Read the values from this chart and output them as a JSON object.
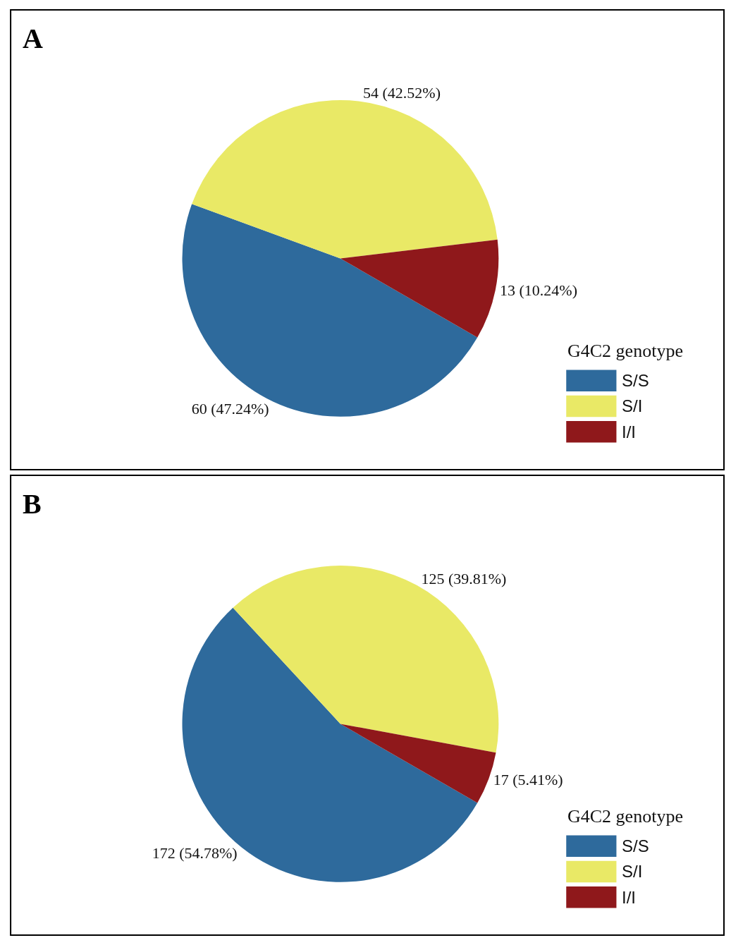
{
  "chart_data": [
    {
      "type": "pie",
      "title": "A",
      "categories": [
        "S/S",
        "S/I",
        "I/I"
      ],
      "values": [
        60,
        54,
        13
      ],
      "colors": [
        "#2e6a9c",
        "#e9e966",
        "#8f181b"
      ],
      "value_labels": [
        "60 (47.24%)",
        "54 (42.52%)",
        "13 (10.24%)"
      ],
      "legend_title": "G4C2 genotype",
      "legend": "bottom right"
    },
    {
      "type": "pie",
      "title": "B",
      "categories": [
        "S/S",
        "S/I",
        "I/I"
      ],
      "values": [
        172,
        125,
        17
      ],
      "colors": [
        "#2e6a9c",
        "#e9e966",
        "#8f181b"
      ],
      "value_labels": [
        "172 (54.78%)",
        "125 (39.81%)",
        "17 (5.41%)"
      ],
      "legend_title": "G4C2 genotype",
      "legend": "bottom right"
    }
  ]
}
